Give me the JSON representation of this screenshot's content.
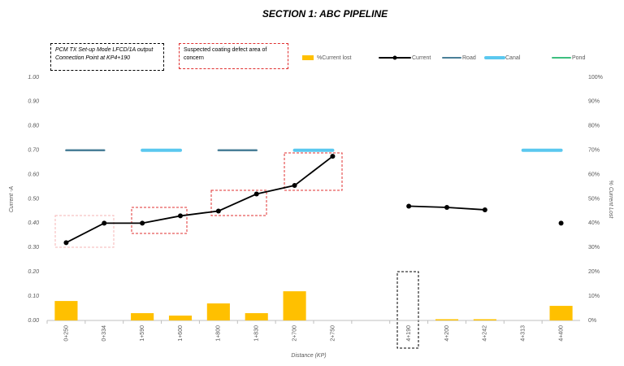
{
  "chart_data": {
    "type": "bar-line",
    "title": "SECTION 1: ABC PIPELINE",
    "x_label": "Distance (KP)",
    "y_label": "Current -A",
    "y2_label": "% Current Lost",
    "annotations": [
      "PCM TX Set-up Mode LFCD/1A output Connection Point at KP4+190",
      "Suspected coating defect area of concern"
    ],
    "categories": [
      "0+250",
      "0+334",
      "1+590",
      "1+600",
      "1+800",
      "1+830",
      "2+700",
      "2+750",
      null,
      "4+190",
      "4+200",
      "4+242",
      "4+313",
      "4+400"
    ],
    "ylim": [
      0,
      1
    ],
    "yticks": [
      {
        "value": 0,
        "label": "0.00"
      },
      {
        "value": 0.1,
        "label": "0.10"
      },
      {
        "value": 0.2,
        "label": "0.20"
      },
      {
        "value": 0.3,
        "label": "0.30"
      },
      {
        "value": 0.4,
        "label": "0.40"
      },
      {
        "value": 0.5,
        "label": "0.50"
      },
      {
        "value": 0.6,
        "label": "0.60"
      },
      {
        "value": 0.7,
        "label": "0.70"
      },
      {
        "value": 0.8,
        "label": "0.80"
      },
      {
        "value": 0.9,
        "label": "0.90"
      },
      {
        "value": 1,
        "label": "1.00"
      }
    ],
    "y2lim": [
      0,
      100
    ],
    "y2ticks": [
      {
        "value": 0,
        "label": "0%"
      },
      {
        "value": 10,
        "label": "10%"
      },
      {
        "value": 20,
        "label": "20%"
      },
      {
        "value": 30,
        "label": "30%"
      },
      {
        "value": 40,
        "label": "40%"
      },
      {
        "value": 50,
        "label": "50%"
      },
      {
        "value": 60,
        "label": "60%"
      },
      {
        "value": 70,
        "label": "70%"
      },
      {
        "value": 80,
        "label": "80%"
      },
      {
        "value": 90,
        "label": "90%"
      },
      {
        "value": 100,
        "label": "100%"
      }
    ],
    "grid": false,
    "series": [
      {
        "name": "%Current lost",
        "type": "bar",
        "axis": "y2",
        "color": "#ffc000",
        "values": [
          8,
          0,
          3,
          2,
          7,
          3,
          12,
          0,
          null,
          0,
          0.5,
          0.5,
          0,
          6
        ]
      },
      {
        "name": "Current",
        "type": "line",
        "color": "#000000",
        "marker": true,
        "values": [
          0.32,
          0.4,
          0.4,
          0.43,
          0.45,
          0.52,
          0.555,
          0.675,
          null,
          0.47,
          0.465,
          0.455,
          null,
          0.4
        ]
      },
      {
        "name": "Road",
        "type": "line",
        "color": "#4a7f98",
        "values": [
          0.7,
          0.7,
          null,
          null,
          0.7,
          0.7,
          null,
          null,
          null,
          null,
          null,
          null,
          null,
          null
        ]
      },
      {
        "name": "Canal",
        "type": "line",
        "color": "#5bc8ef",
        "values": [
          null,
          null,
          0.7,
          0.7,
          null,
          null,
          0.7,
          0.7,
          null,
          null,
          null,
          null,
          0.7,
          0.7
        ]
      },
      {
        "name": "Pond",
        "type": "line",
        "color": "#3dbf7f",
        "values": [
          null,
          null,
          null,
          null,
          null,
          null,
          null,
          null,
          null,
          null,
          null,
          null,
          null,
          null
        ]
      }
    ]
  }
}
